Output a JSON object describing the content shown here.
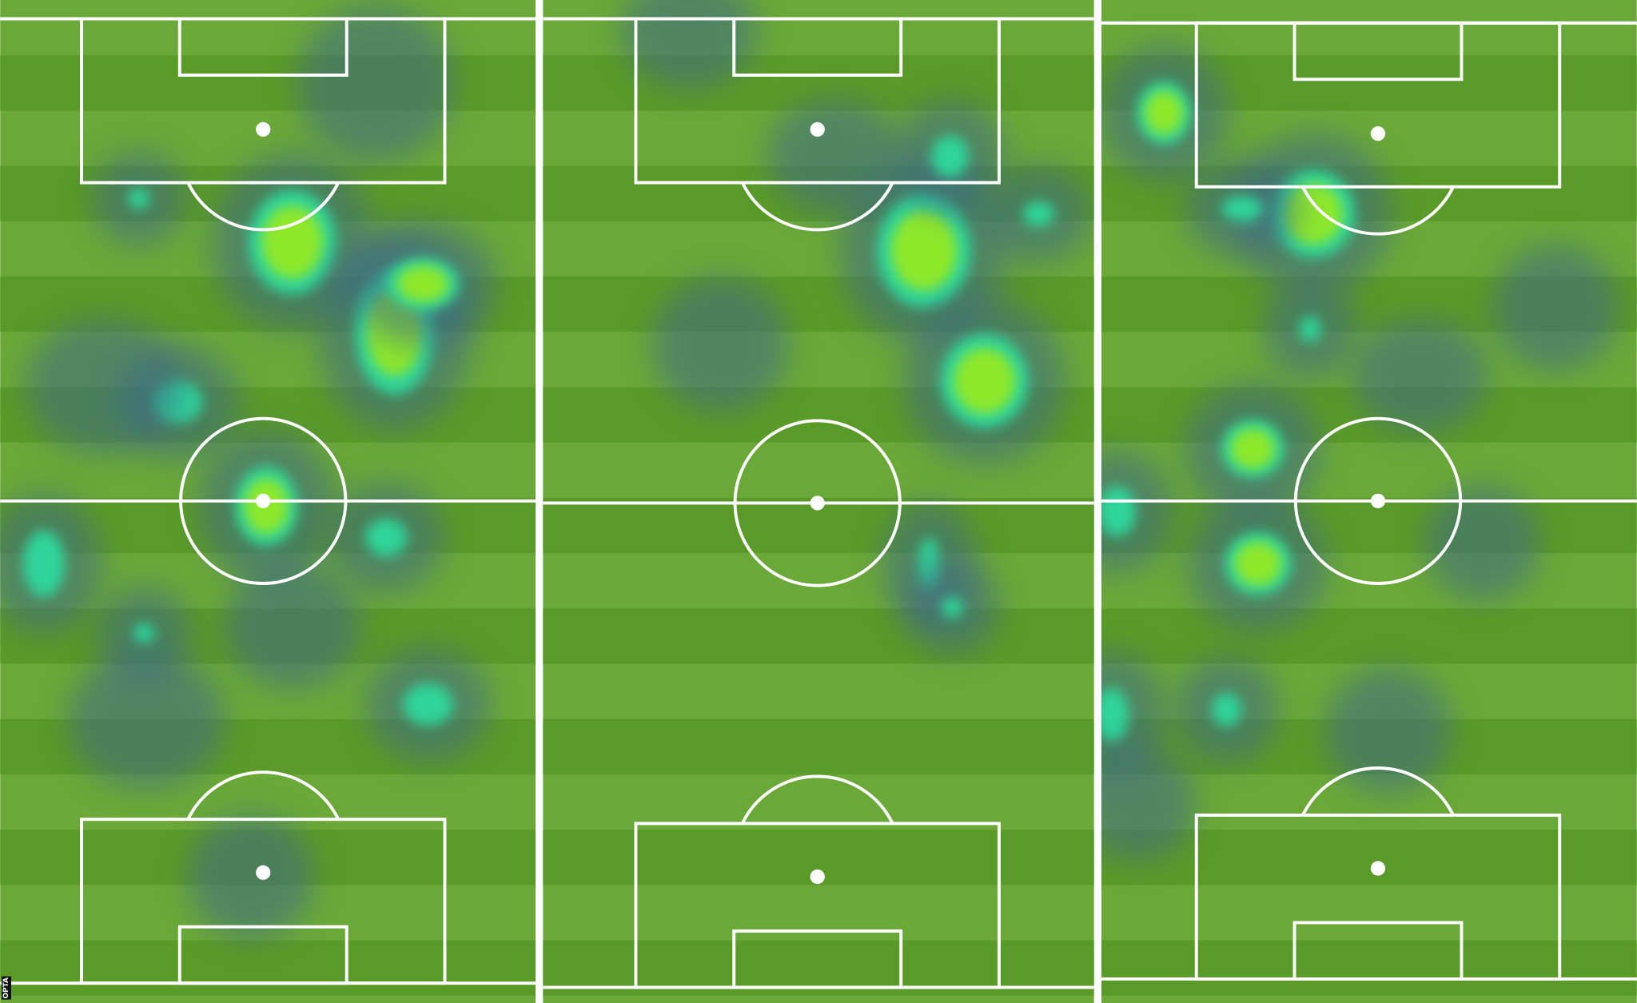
{
  "credit": "OPTA",
  "colors": {
    "grass_light": "#6aa838",
    "grass_dark": "#5a9a28",
    "lines": "#ffffff",
    "heat_low": "#3d6a86",
    "heat_mid": "#2fd49a",
    "heat_high": "#8ee82a"
  },
  "panels": [
    {
      "label": ""
    },
    {
      "label": ""
    },
    {
      "label": ""
    }
  ]
}
